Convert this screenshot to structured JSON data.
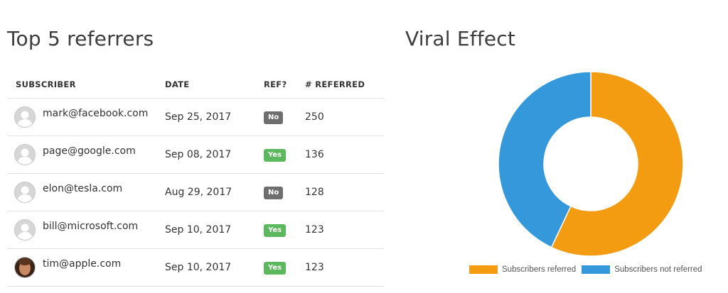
{
  "referrers": {
    "title": "Top 5 referrers",
    "columns": [
      "SUBSCRIBER",
      "DATE",
      "REF?",
      "# REFERRED"
    ],
    "rows": [
      {
        "email": "mark@facebook.com",
        "date": "Sep 25, 2017",
        "ref": "No",
        "referred": "250",
        "avatar": "placeholder-avatar-icon"
      },
      {
        "email": "page@google.com",
        "date": "Sep 08, 2017",
        "ref": "Yes",
        "referred": "136",
        "avatar": "placeholder-avatar-icon"
      },
      {
        "email": "elon@tesla.com",
        "date": "Aug 29, 2017",
        "ref": "No",
        "referred": "128",
        "avatar": "placeholder-avatar-icon"
      },
      {
        "email": "bill@microsoft.com",
        "date": "Sep 10, 2017",
        "ref": "Yes",
        "referred": "123",
        "avatar": "placeholder-avatar-icon"
      },
      {
        "email": "tim@apple.com",
        "date": "Sep 10, 2017",
        "ref": "Yes",
        "referred": "123",
        "avatar": "photo-avatar"
      }
    ]
  },
  "viral": {
    "title": "Viral Effect",
    "legend": {
      "referred": "Subscribers referred",
      "not_referred": "Subscribers not referred"
    }
  },
  "colors": {
    "referred": "#f39c12",
    "not_referred": "#3498db",
    "badge_yes": "#5cb85c",
    "badge_no": "#6e6e6e"
  },
  "chart_data": {
    "type": "pie",
    "labels": [
      "Subscribers referred",
      "Subscribers not referred"
    ],
    "values": [
      57,
      43
    ],
    "legend_position": "bottom"
  }
}
